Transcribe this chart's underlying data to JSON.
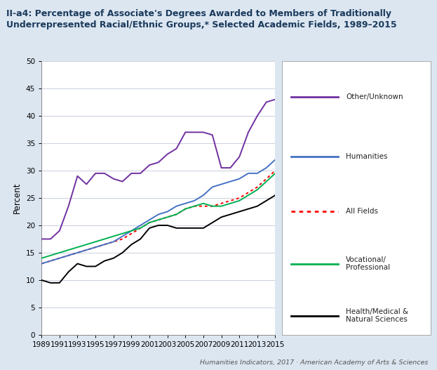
{
  "title_line1": "II-a4: Percentage of Associate's Degrees Awarded to Members of Traditionally",
  "title_line2": "Underrepresented Racial/Ethnic Groups,* Selected Academic Fields, 1989–2015",
  "ylabel": "Percent",
  "footer": "Humanities Indicators, 2017 · American Academy of Arts & Sciences",
  "years": [
    1989,
    1990,
    1991,
    1992,
    1993,
    1994,
    1995,
    1996,
    1997,
    1998,
    1999,
    2000,
    2001,
    2002,
    2003,
    2004,
    2005,
    2006,
    2007,
    2008,
    2009,
    2010,
    2011,
    2012,
    2013,
    2014,
    2015
  ],
  "other_unknown": [
    17.5,
    17.5,
    19.0,
    23.5,
    29.0,
    27.5,
    29.5,
    29.5,
    28.5,
    28.0,
    29.5,
    29.5,
    31.0,
    31.5,
    33.0,
    34.0,
    37.0,
    37.0,
    37.0,
    36.5,
    30.5,
    30.5,
    32.5,
    37.0,
    40.0,
    42.5,
    43.0
  ],
  "humanities": [
    13.0,
    13.5,
    14.0,
    14.5,
    15.0,
    15.5,
    16.0,
    16.5,
    17.0,
    18.0,
    19.0,
    20.0,
    21.0,
    22.0,
    22.5,
    23.5,
    24.0,
    24.5,
    25.5,
    27.0,
    27.5,
    28.0,
    28.5,
    29.5,
    29.5,
    30.5,
    32.0
  ],
  "all_fields": [
    13.0,
    13.5,
    14.0,
    14.5,
    15.0,
    15.5,
    16.0,
    16.5,
    17.0,
    17.5,
    18.5,
    19.5,
    20.5,
    21.0,
    21.5,
    22.0,
    23.0,
    23.5,
    23.5,
    23.5,
    24.0,
    24.5,
    25.0,
    26.0,
    27.0,
    28.5,
    30.0
  ],
  "vocational_professional": [
    14.0,
    14.5,
    15.0,
    15.5,
    16.0,
    16.5,
    17.0,
    17.5,
    18.0,
    18.5,
    19.0,
    19.5,
    20.5,
    21.0,
    21.5,
    22.0,
    23.0,
    23.5,
    24.0,
    23.5,
    23.5,
    24.0,
    24.5,
    25.5,
    26.5,
    28.0,
    29.5
  ],
  "health_medical": [
    10.0,
    9.5,
    9.5,
    11.5,
    13.0,
    12.5,
    12.5,
    13.5,
    14.0,
    15.0,
    16.5,
    17.5,
    19.5,
    20.0,
    20.0,
    19.5,
    19.5,
    19.5,
    19.5,
    20.5,
    21.5,
    22.0,
    22.5,
    23.0,
    23.5,
    24.5,
    25.5
  ],
  "other_color": "#7030a0",
  "humanities_color": "#4472c4",
  "all_fields_color": "#ff0000",
  "vocational_color": "#00b050",
  "health_color": "#000000",
  "bg_color": "#dce6f1",
  "plot_bg_color": "#ffffff",
  "ylim": [
    0,
    50
  ],
  "yticks": [
    0,
    5,
    10,
    15,
    20,
    25,
    30,
    35,
    40,
    45,
    50
  ],
  "xtick_years": [
    1989,
    1991,
    1993,
    1995,
    1997,
    1999,
    2001,
    2003,
    2005,
    2007,
    2009,
    2011,
    2013,
    2015
  ]
}
